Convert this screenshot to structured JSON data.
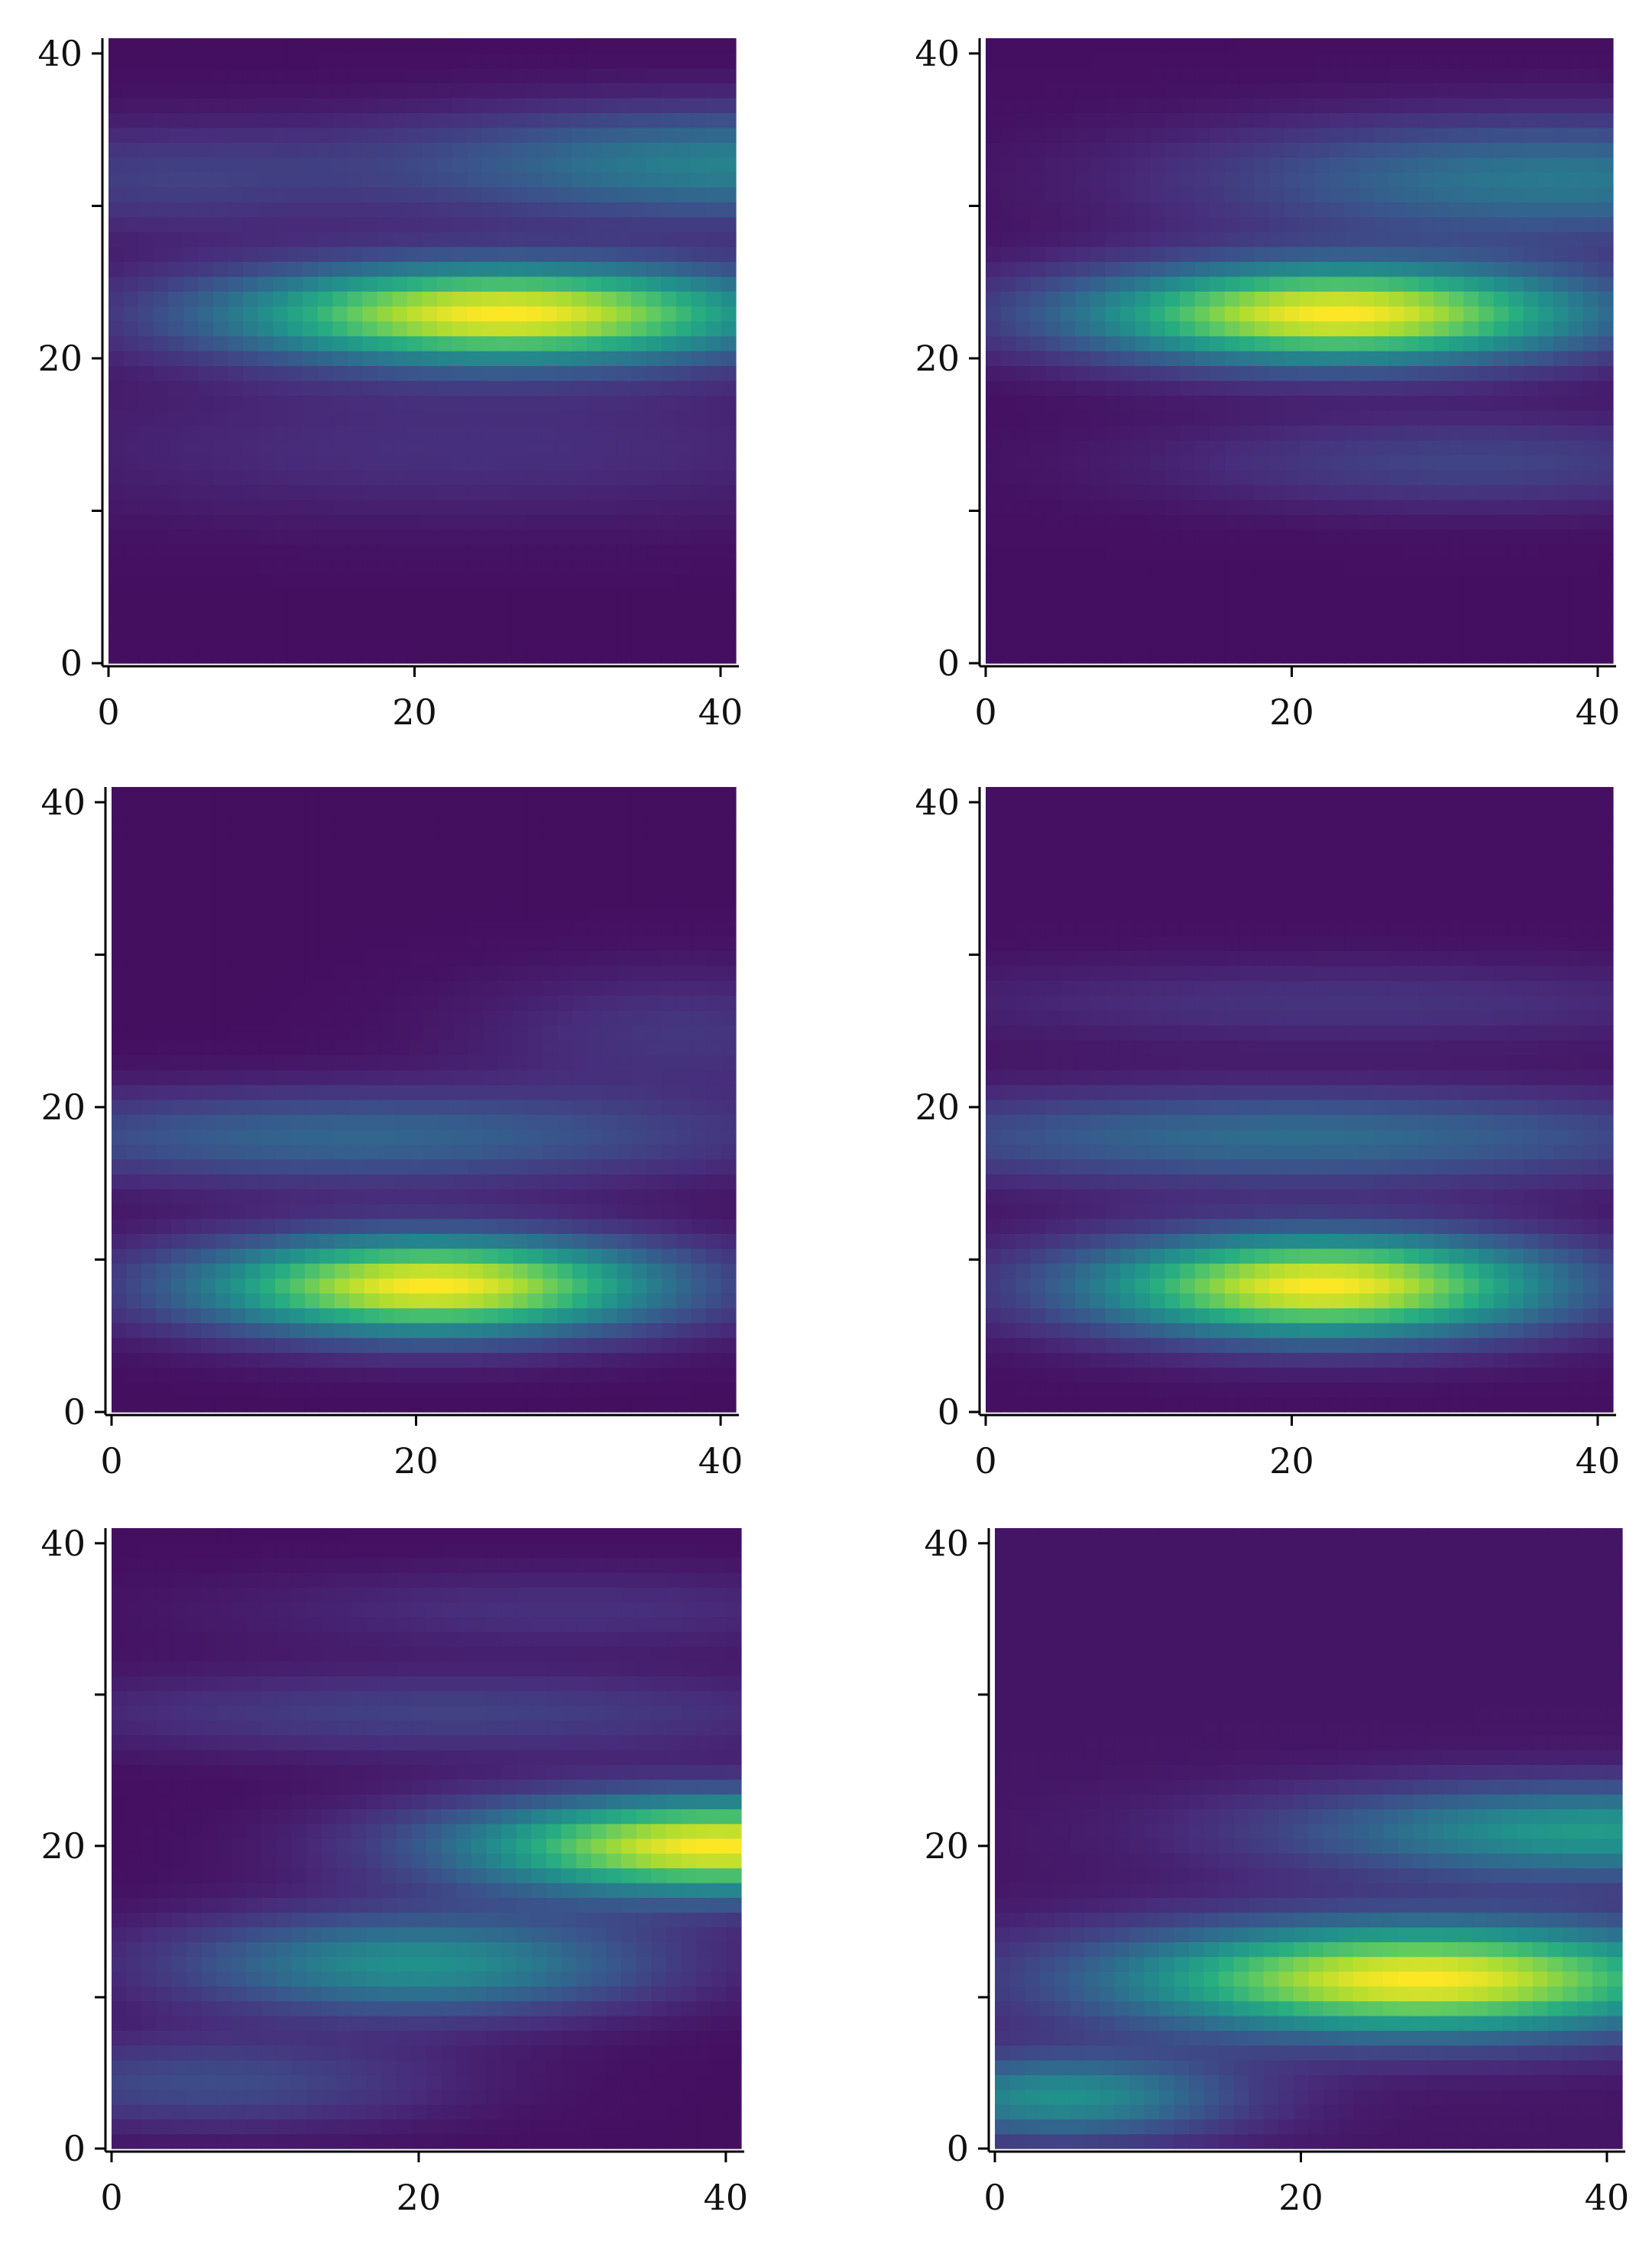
{
  "figure": {
    "colormap": "viridis",
    "colormap_stops": [
      "#440154",
      "#472d7b",
      "#3b528b",
      "#2c728e",
      "#21918c",
      "#28ae80",
      "#5ec962",
      "#addc30",
      "#fde725"
    ]
  },
  "chart_data": [
    {
      "type": "heatmap",
      "panel": "top-left",
      "title": "",
      "xlabel": "",
      "ylabel": "",
      "grid_size": [
        42,
        42
      ],
      "xlim": [
        0,
        41
      ],
      "ylim": [
        0,
        41
      ],
      "x_ticks": [
        0,
        20,
        40
      ],
      "y_ticks": [
        0,
        10,
        20,
        30,
        40
      ],
      "x_tick_labels": [
        "0",
        "20",
        "40"
      ],
      "y_tick_labels": [
        "0",
        "",
        "20",
        "",
        "40"
      ],
      "bands": [
        {
          "y": 23,
          "x_center": 26,
          "x_width": 13,
          "y_width": 2.3,
          "amplitude": 1.0
        },
        {
          "y": 33,
          "x_center": 42,
          "x_width": 16,
          "y_width": 2.6,
          "amplitude": 0.42
        },
        {
          "y": 32,
          "x_center": 2,
          "x_width": 10,
          "y_width": 2.6,
          "amplitude": 0.14
        },
        {
          "y": 14,
          "x_center": 24,
          "x_width": 22,
          "y_width": 3.5,
          "amplitude": 0.1
        }
      ]
    },
    {
      "type": "heatmap",
      "panel": "top-right",
      "title": "",
      "xlabel": "",
      "ylabel": "",
      "grid_size": [
        42,
        42
      ],
      "xlim": [
        0,
        41
      ],
      "ylim": [
        0,
        41
      ],
      "x_ticks": [
        0,
        20,
        40
      ],
      "y_ticks": [
        0,
        10,
        20,
        30,
        40
      ],
      "x_tick_labels": [
        "0",
        "20",
        "40"
      ],
      "y_tick_labels": [
        "0",
        "",
        "20",
        "",
        "40"
      ],
      "bands": [
        {
          "y": 23,
          "x_center": 23,
          "x_width": 12,
          "y_width": 2.3,
          "amplitude": 0.95
        },
        {
          "y": 32,
          "x_center": 38,
          "x_width": 16,
          "y_width": 2.8,
          "amplitude": 0.36
        },
        {
          "y": 13,
          "x_center": 32,
          "x_width": 14,
          "y_width": 2.2,
          "amplitude": 0.16
        }
      ]
    },
    {
      "type": "heatmap",
      "panel": "middle-left",
      "title": "",
      "xlabel": "",
      "ylabel": "",
      "grid_size": [
        42,
        42
      ],
      "xlim": [
        0,
        41
      ],
      "ylim": [
        0,
        41
      ],
      "x_ticks": [
        0,
        20,
        40
      ],
      "y_ticks": [
        0,
        10,
        20,
        30,
        40
      ],
      "x_tick_labels": [
        "0",
        "20",
        "40"
      ],
      "y_tick_labels": [
        "0",
        "",
        "20",
        "",
        "40"
      ],
      "bands": [
        {
          "y": 8,
          "x_center": 21,
          "x_width": 11,
          "y_width": 2.3,
          "amplitude": 1.0
        },
        {
          "y": 18,
          "x_center": 16,
          "x_width": 18,
          "y_width": 2.2,
          "amplitude": 0.3
        },
        {
          "y": 25,
          "x_center": 38,
          "x_width": 10,
          "y_width": 3.0,
          "amplitude": 0.12
        }
      ]
    },
    {
      "type": "heatmap",
      "panel": "middle-right",
      "title": "",
      "xlabel": "",
      "ylabel": "",
      "grid_size": [
        42,
        42
      ],
      "xlim": [
        0,
        41
      ],
      "ylim": [
        0,
        41
      ],
      "x_ticks": [
        0,
        20,
        40
      ],
      "y_ticks": [
        0,
        10,
        20,
        30,
        40
      ],
      "x_tick_labels": [
        "0",
        "20",
        "40"
      ],
      "y_tick_labels": [
        "0",
        "",
        "20",
        "",
        "40"
      ],
      "bands": [
        {
          "y": 8,
          "x_center": 22,
          "x_width": 11,
          "y_width": 2.4,
          "amplitude": 0.92
        },
        {
          "y": 18,
          "x_center": 20,
          "x_width": 20,
          "y_width": 2.2,
          "amplitude": 0.3
        },
        {
          "y": 27,
          "x_center": 24,
          "x_width": 20,
          "y_width": 2.0,
          "amplitude": 0.1
        }
      ]
    },
    {
      "type": "heatmap",
      "panel": "bottom-left",
      "title": "",
      "xlabel": "",
      "ylabel": "",
      "grid_size": [
        42,
        42
      ],
      "xlim": [
        0,
        41
      ],
      "ylim": [
        0,
        41
      ],
      "x_ticks": [
        0,
        20,
        40
      ],
      "y_ticks": [
        0,
        10,
        20,
        30,
        40
      ],
      "x_tick_labels": [
        "0",
        "20",
        "40"
      ],
      "y_tick_labels": [
        "0",
        "",
        "20",
        "",
        "40"
      ],
      "bands": [
        {
          "y": 20,
          "x_center": 40,
          "x_width": 12,
          "y_width": 2.3,
          "amplitude": 1.0
        },
        {
          "y": 12,
          "x_center": 20,
          "x_width": 11,
          "y_width": 2.4,
          "amplitude": 0.48
        },
        {
          "y": 29,
          "x_center": 22,
          "x_width": 18,
          "y_width": 2.0,
          "amplitude": 0.16
        },
        {
          "y": 4,
          "x_center": 6,
          "x_width": 11,
          "y_width": 2.2,
          "amplitude": 0.2
        },
        {
          "y": 36,
          "x_center": 30,
          "x_width": 16,
          "y_width": 2.0,
          "amplitude": 0.1
        }
      ]
    },
    {
      "type": "heatmap",
      "panel": "bottom-right",
      "title": "",
      "xlabel": "",
      "ylabel": "",
      "grid_size": [
        42,
        42
      ],
      "xlim": [
        0,
        41
      ],
      "ylim": [
        0,
        41
      ],
      "x_ticks": [
        0,
        20,
        40
      ],
      "y_ticks": [
        0,
        10,
        20,
        30,
        40
      ],
      "x_tick_labels": [
        "0",
        "20",
        "40"
      ],
      "y_tick_labels": [
        "0",
        "",
        "20",
        "",
        "40"
      ],
      "bands": [
        {
          "y": 11,
          "x_center": 28,
          "x_width": 14,
          "y_width": 2.6,
          "amplitude": 0.68
        },
        {
          "y": 21,
          "x_center": 40,
          "x_width": 14,
          "y_width": 2.2,
          "amplitude": 0.35
        },
        {
          "y": 3,
          "x_center": 4,
          "x_width": 8,
          "y_width": 2.0,
          "amplitude": 0.32
        }
      ]
    }
  ]
}
